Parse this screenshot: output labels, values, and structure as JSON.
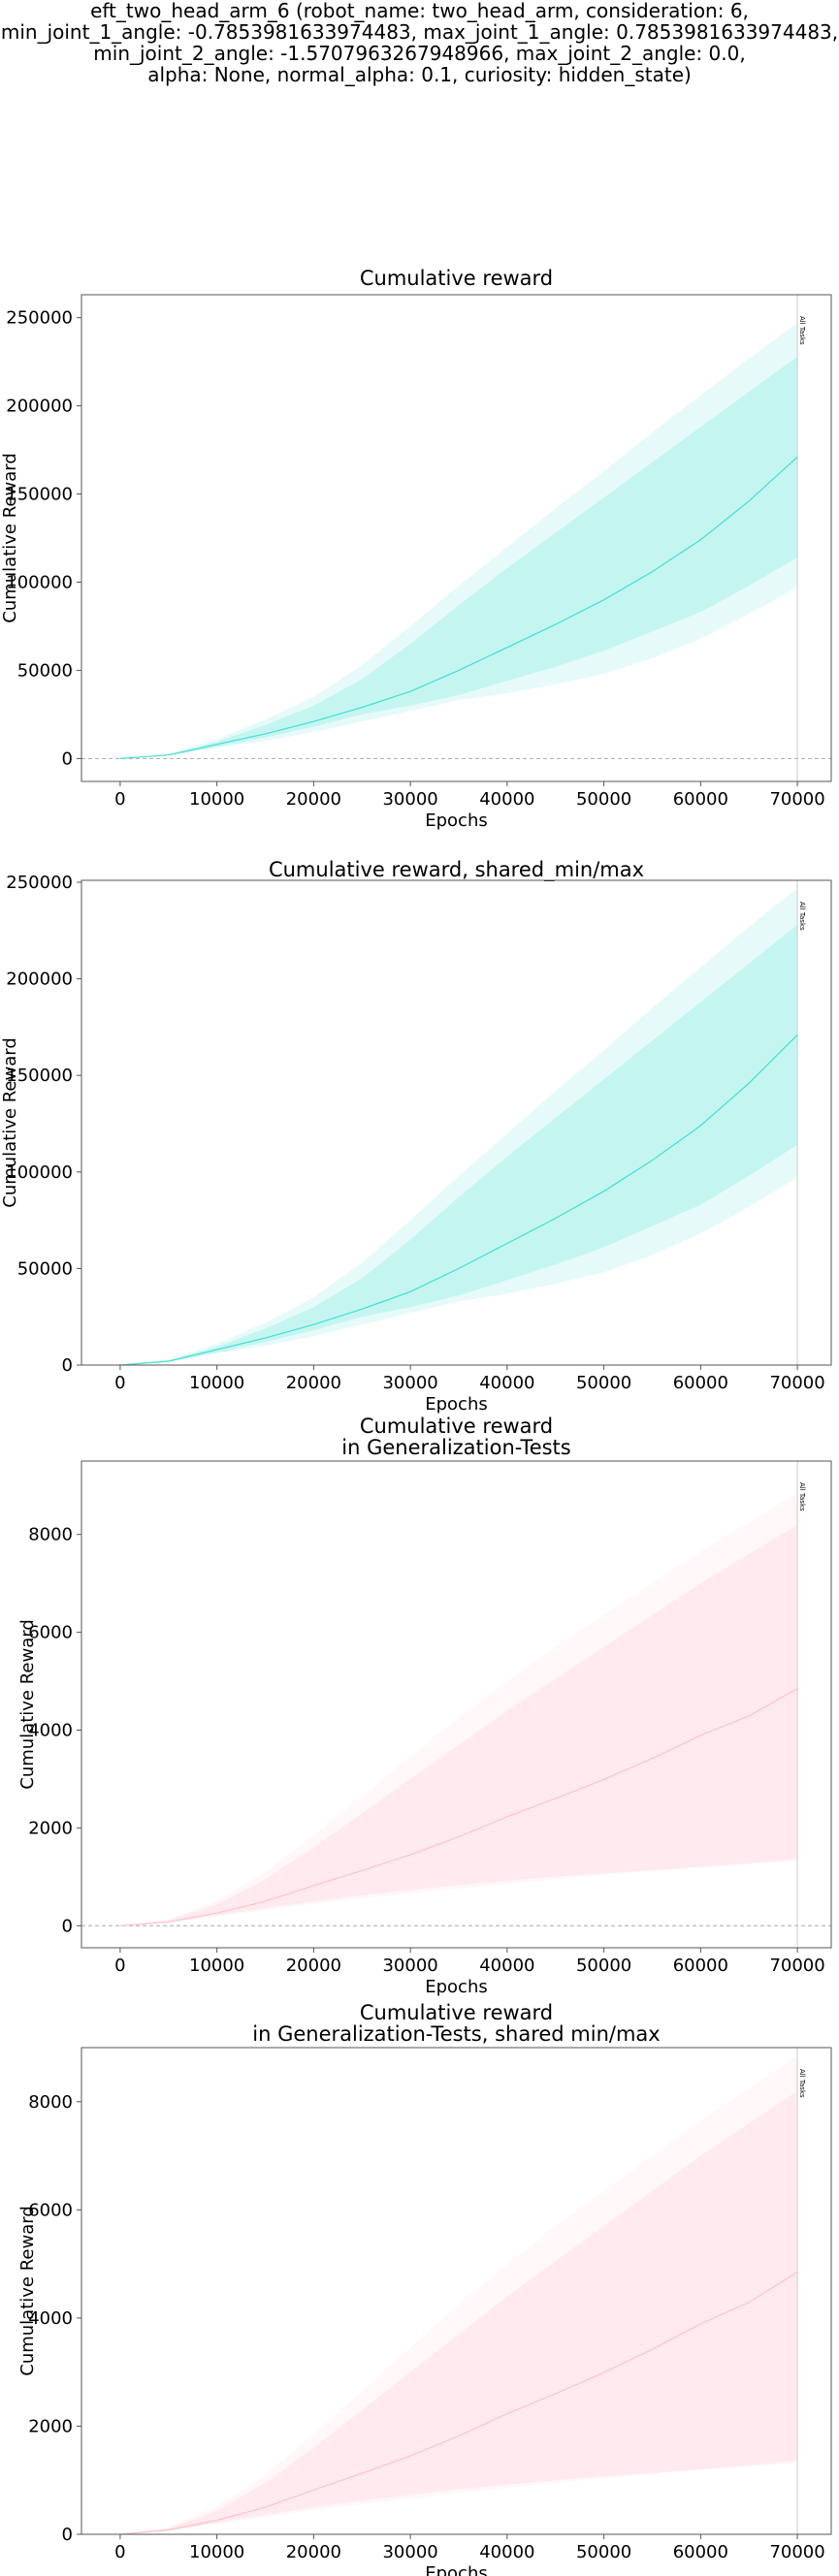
{
  "suptitle": "eft_two_head_arm_6 (robot_name: two_head_arm, consideration: 6,\nmin_joint_1_angle: -0.7853981633974483, max_joint_1_angle: 0.7853981633974483,\nmin_joint_2_angle: -1.5707963267948966, max_joint_2_angle: 0.0,\nalpha: None, normal_alpha: 0.1, curiosity: hidden_state)",
  "chart_data": [
    {
      "type": "line",
      "title": "Cumulative reward",
      "xlabel": "Epochs",
      "ylabel": "Cumulative Reward",
      "xlim": [
        -4000,
        73500
      ],
      "ylim": [
        -13000,
        263000
      ],
      "xticks": [
        0,
        10000,
        20000,
        30000,
        40000,
        50000,
        60000,
        70000
      ],
      "yticks": [
        0,
        50000,
        100000,
        150000,
        200000,
        250000
      ],
      "zero_line": true,
      "color": "#40e0d0",
      "marker": {
        "x": 70000,
        "label": "All Tasks"
      },
      "x": [
        0,
        5000,
        10000,
        15000,
        20000,
        25000,
        30000,
        35000,
        40000,
        45000,
        50000,
        55000,
        60000,
        65000,
        70000
      ],
      "series": [
        {
          "role": "mean",
          "values": [
            0,
            2000,
            8000,
            14000,
            21000,
            29000,
            38000,
            50000,
            63000,
            76000,
            90000,
            106000,
            124000,
            146000,
            171000
          ]
        },
        {
          "role": "band_inner_lower",
          "values": [
            0,
            1700,
            6500,
            12000,
            18000,
            25000,
            30000,
            36000,
            44000,
            52000,
            61000,
            72000,
            83000,
            98000,
            114000
          ]
        },
        {
          "role": "band_inner_upper",
          "values": [
            0,
            2300,
            9500,
            19000,
            30000,
            45000,
            65000,
            87000,
            108000,
            128000,
            148000,
            168000,
            188000,
            208000,
            228000
          ]
        },
        {
          "role": "band_outer_lower",
          "values": [
            0,
            1500,
            6000,
            10000,
            15000,
            21000,
            27000,
            33000,
            37000,
            42000,
            48000,
            57000,
            68000,
            82000,
            97000
          ]
        },
        {
          "role": "band_outer_upper",
          "values": [
            0,
            2600,
            11000,
            22000,
            35000,
            53000,
            75000,
            98000,
            120000,
            142000,
            163000,
            185000,
            206000,
            227000,
            247000
          ]
        }
      ]
    },
    {
      "type": "line",
      "title": "Cumulative reward, shared_min/max",
      "xlabel": "Epochs",
      "ylabel": "Cumulative Reward",
      "xlim": [
        -4000,
        73500
      ],
      "ylim": [
        0,
        251000
      ],
      "xticks": [
        0,
        10000,
        20000,
        30000,
        40000,
        50000,
        60000,
        70000
      ],
      "yticks": [
        0,
        50000,
        100000,
        150000,
        200000,
        250000
      ],
      "zero_line": false,
      "color": "#40e0d0",
      "marker": {
        "x": 70000,
        "label": "All Tasks"
      },
      "x": [
        0,
        5000,
        10000,
        15000,
        20000,
        25000,
        30000,
        35000,
        40000,
        45000,
        50000,
        55000,
        60000,
        65000,
        70000
      ],
      "series": [
        {
          "role": "mean",
          "values": [
            0,
            2000,
            8000,
            14000,
            21000,
            29000,
            38000,
            50000,
            63000,
            76000,
            90000,
            106000,
            124000,
            146000,
            171000
          ]
        },
        {
          "role": "band_inner_lower",
          "values": [
            0,
            1700,
            6500,
            12000,
            18000,
            25000,
            30000,
            36000,
            44000,
            52000,
            61000,
            72000,
            83000,
            98000,
            114000
          ]
        },
        {
          "role": "band_inner_upper",
          "values": [
            0,
            2300,
            9500,
            19000,
            30000,
            45000,
            65000,
            87000,
            108000,
            128000,
            148000,
            168000,
            188000,
            208000,
            228000
          ]
        },
        {
          "role": "band_outer_lower",
          "values": [
            0,
            1500,
            6000,
            10000,
            15000,
            21000,
            27000,
            33000,
            37000,
            42000,
            48000,
            57000,
            68000,
            82000,
            97000
          ]
        },
        {
          "role": "band_outer_upper",
          "values": [
            0,
            2600,
            11000,
            22000,
            35000,
            53000,
            75000,
            98000,
            120000,
            142000,
            163000,
            185000,
            206000,
            227000,
            247000
          ]
        }
      ]
    },
    {
      "type": "line",
      "title": "Cumulative reward\nin Generalization-Tests",
      "xlabel": "Epochs",
      "ylabel": "Cumulative Reward",
      "xlim": [
        -4000,
        73500
      ],
      "ylim": [
        -450,
        9500
      ],
      "xticks": [
        0,
        10000,
        20000,
        30000,
        40000,
        50000,
        60000,
        70000
      ],
      "yticks": [
        0,
        2000,
        4000,
        6000,
        8000
      ],
      "zero_line": true,
      "color": "#ffc0cb",
      "marker": {
        "x": 70000,
        "label": "All Tasks"
      },
      "x": [
        0,
        5000,
        10000,
        15000,
        20000,
        25000,
        30000,
        35000,
        40000,
        45000,
        50000,
        55000,
        60000,
        65000,
        70000
      ],
      "series": [
        {
          "role": "mean",
          "values": [
            0,
            80,
            260,
            500,
            820,
            1130,
            1450,
            1820,
            2230,
            2600,
            2990,
            3420,
            3890,
            4290,
            4850
          ]
        },
        {
          "role": "band_inner_lower",
          "values": [
            0,
            70,
            210,
            360,
            500,
            620,
            730,
            830,
            920,
            1000,
            1070,
            1130,
            1200,
            1260,
            1330
          ]
        },
        {
          "role": "band_inner_upper",
          "values": [
            0,
            110,
            440,
            950,
            1600,
            2300,
            3000,
            3700,
            4400,
            5050,
            5700,
            6350,
            7000,
            7600,
            8200
          ]
        },
        {
          "role": "band_outer_lower",
          "values": [
            0,
            60,
            190,
            320,
            450,
            560,
            660,
            760,
            860,
            950,
            1040,
            1120,
            1200,
            1280,
            1370
          ]
        },
        {
          "role": "band_outer_upper",
          "values": [
            0,
            130,
            520,
            1100,
            1850,
            2650,
            3450,
            4250,
            5000,
            5700,
            6350,
            7000,
            7650,
            8250,
            8850
          ]
        }
      ]
    },
    {
      "type": "line",
      "title": "Cumulative reward\nin Generalization-Tests, shared min/max",
      "xlabel": "Epochs",
      "ylabel": "Cumulative Reward",
      "xlim": [
        -4000,
        73500
      ],
      "ylim": [
        0,
        9000
      ],
      "xticks": [
        0,
        10000,
        20000,
        30000,
        40000,
        50000,
        60000,
        70000
      ],
      "yticks": [
        0,
        2000,
        4000,
        6000,
        8000
      ],
      "zero_line": false,
      "color": "#ffc0cb",
      "marker": {
        "x": 70000,
        "label": "All Tasks"
      },
      "x": [
        0,
        5000,
        10000,
        15000,
        20000,
        25000,
        30000,
        35000,
        40000,
        45000,
        50000,
        55000,
        60000,
        65000,
        70000
      ],
      "series": [
        {
          "role": "mean",
          "values": [
            0,
            80,
            260,
            500,
            820,
            1130,
            1450,
            1820,
            2230,
            2600,
            2990,
            3420,
            3890,
            4290,
            4850
          ]
        },
        {
          "role": "band_inner_lower",
          "values": [
            0,
            70,
            210,
            360,
            500,
            620,
            730,
            830,
            920,
            1000,
            1070,
            1130,
            1200,
            1260,
            1330
          ]
        },
        {
          "role": "band_inner_upper",
          "values": [
            0,
            110,
            440,
            950,
            1600,
            2300,
            3000,
            3700,
            4400,
            5050,
            5700,
            6350,
            7000,
            7600,
            8200
          ]
        },
        {
          "role": "band_outer_lower",
          "values": [
            0,
            60,
            190,
            320,
            450,
            560,
            660,
            760,
            860,
            950,
            1040,
            1120,
            1200,
            1280,
            1370
          ]
        },
        {
          "role": "band_outer_upper",
          "values": [
            0,
            130,
            520,
            1100,
            1850,
            2650,
            3450,
            4250,
            5000,
            5700,
            6350,
            7000,
            7650,
            8250,
            8850
          ]
        }
      ]
    }
  ]
}
